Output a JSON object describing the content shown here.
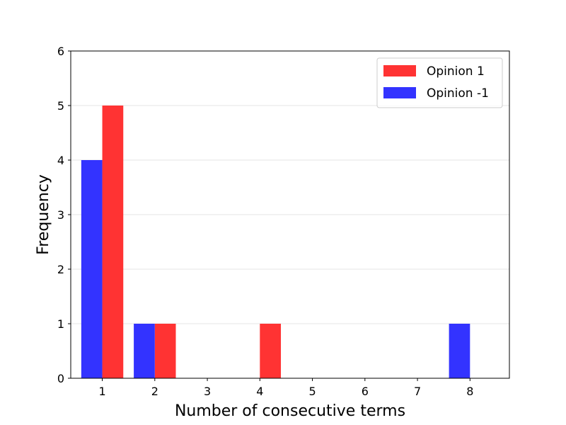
{
  "chart_data": {
    "type": "bar",
    "xlabel": "Number of consecutive terms",
    "ylabel": "Frequency",
    "x": [
      1,
      2,
      3,
      4,
      5,
      6,
      7,
      8
    ],
    "xlim": [
      0.4,
      8.75
    ],
    "ylim": [
      0,
      6
    ],
    "x_ticks": [
      1,
      2,
      3,
      4,
      5,
      6,
      7,
      8
    ],
    "y_ticks": [
      0,
      1,
      2,
      3,
      4,
      5,
      6
    ],
    "grid": "horizontal",
    "legend_position": "top-right",
    "series": [
      {
        "name": "Opinion 1",
        "color": "#ff3333",
        "values": [
          5,
          1,
          0,
          1,
          0,
          0,
          0,
          0
        ]
      },
      {
        "name": "Opinion -1",
        "color": "#3333ff",
        "values": [
          4,
          1,
          0,
          0,
          0,
          0,
          0,
          1
        ]
      }
    ]
  }
}
